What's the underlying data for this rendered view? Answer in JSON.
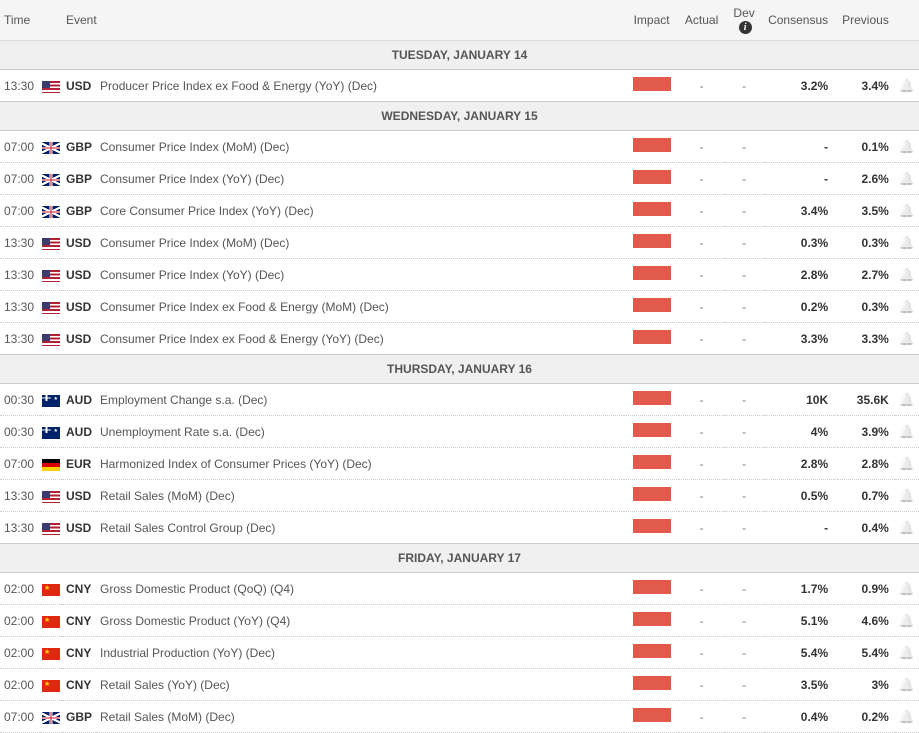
{
  "columns": {
    "time": "Time",
    "event": "Event",
    "impact": "Impact",
    "actual": "Actual",
    "dev": "Dev",
    "consensus": "Consensus",
    "previous": "Previous"
  },
  "impact_bar_color": "#e15a4b",
  "days": [
    {
      "label": "TUESDAY, JANUARY 14",
      "events": [
        {
          "time": "13:30",
          "flag": "us",
          "curr": "USD",
          "name": "Producer Price Index ex Food & Energy (YoY) (Dec)",
          "actual": "-",
          "dev": "-",
          "consensus": "3.2%",
          "previous": "3.4%"
        }
      ]
    },
    {
      "label": "WEDNESDAY, JANUARY 15",
      "events": [
        {
          "time": "07:00",
          "flag": "gb",
          "curr": "GBP",
          "name": "Consumer Price Index (MoM) (Dec)",
          "actual": "-",
          "dev": "-",
          "consensus": "-",
          "previous": "0.1%"
        },
        {
          "time": "07:00",
          "flag": "gb",
          "curr": "GBP",
          "name": "Consumer Price Index (YoY) (Dec)",
          "actual": "-",
          "dev": "-",
          "consensus": "-",
          "previous": "2.6%"
        },
        {
          "time": "07:00",
          "flag": "gb",
          "curr": "GBP",
          "name": "Core Consumer Price Index (YoY) (Dec)",
          "actual": "-",
          "dev": "-",
          "consensus": "3.4%",
          "previous": "3.5%"
        },
        {
          "time": "13:30",
          "flag": "us",
          "curr": "USD",
          "name": "Consumer Price Index (MoM) (Dec)",
          "actual": "-",
          "dev": "-",
          "consensus": "0.3%",
          "previous": "0.3%"
        },
        {
          "time": "13:30",
          "flag": "us",
          "curr": "USD",
          "name": "Consumer Price Index (YoY) (Dec)",
          "actual": "-",
          "dev": "-",
          "consensus": "2.8%",
          "previous": "2.7%"
        },
        {
          "time": "13:30",
          "flag": "us",
          "curr": "USD",
          "name": "Consumer Price Index ex Food & Energy (MoM) (Dec)",
          "actual": "-",
          "dev": "-",
          "consensus": "0.2%",
          "previous": "0.3%"
        },
        {
          "time": "13:30",
          "flag": "us",
          "curr": "USD",
          "name": "Consumer Price Index ex Food & Energy (YoY) (Dec)",
          "actual": "-",
          "dev": "-",
          "consensus": "3.3%",
          "previous": "3.3%"
        }
      ]
    },
    {
      "label": "THURSDAY, JANUARY 16",
      "events": [
        {
          "time": "00:30",
          "flag": "au",
          "curr": "AUD",
          "name": "Employment Change s.a. (Dec)",
          "actual": "-",
          "dev": "-",
          "consensus": "10K",
          "previous": "35.6K"
        },
        {
          "time": "00:30",
          "flag": "au",
          "curr": "AUD",
          "name": "Unemployment Rate s.a. (Dec)",
          "actual": "-",
          "dev": "-",
          "consensus": "4%",
          "previous": "3.9%"
        },
        {
          "time": "07:00",
          "flag": "de",
          "curr": "EUR",
          "name": "Harmonized Index of Consumer Prices (YoY) (Dec)",
          "actual": "-",
          "dev": "-",
          "consensus": "2.8%",
          "previous": "2.8%"
        },
        {
          "time": "13:30",
          "flag": "us",
          "curr": "USD",
          "name": "Retail Sales (MoM) (Dec)",
          "actual": "-",
          "dev": "-",
          "consensus": "0.5%",
          "previous": "0.7%"
        },
        {
          "time": "13:30",
          "flag": "us",
          "curr": "USD",
          "name": "Retail Sales Control Group (Dec)",
          "actual": "-",
          "dev": "-",
          "consensus": "-",
          "previous": "0.4%"
        }
      ]
    },
    {
      "label": "FRIDAY, JANUARY 17",
      "events": [
        {
          "time": "02:00",
          "flag": "cn",
          "curr": "CNY",
          "name": "Gross Domestic Product (QoQ) (Q4)",
          "actual": "-",
          "dev": "-",
          "consensus": "1.7%",
          "previous": "0.9%"
        },
        {
          "time": "02:00",
          "flag": "cn",
          "curr": "CNY",
          "name": "Gross Domestic Product (YoY) (Q4)",
          "actual": "-",
          "dev": "-",
          "consensus": "5.1%",
          "previous": "4.6%"
        },
        {
          "time": "02:00",
          "flag": "cn",
          "curr": "CNY",
          "name": "Industrial Production (YoY) (Dec)",
          "actual": "-",
          "dev": "-",
          "consensus": "5.4%",
          "previous": "5.4%"
        },
        {
          "time": "02:00",
          "flag": "cn",
          "curr": "CNY",
          "name": "Retail Sales (YoY) (Dec)",
          "actual": "-",
          "dev": "-",
          "consensus": "3.5%",
          "previous": "3%"
        },
        {
          "time": "07:00",
          "flag": "gb",
          "curr": "GBP",
          "name": "Retail Sales (MoM) (Dec)",
          "actual": "-",
          "dev": "-",
          "consensus": "0.4%",
          "previous": "0.2%"
        }
      ]
    }
  ]
}
